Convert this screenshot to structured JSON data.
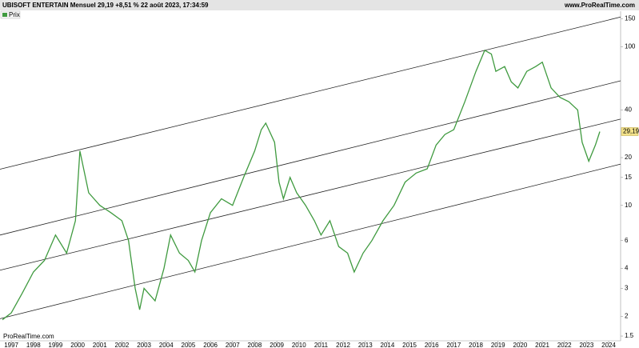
{
  "chart_data": {
    "type": "line",
    "title": "UBISOFT ENTERTAIN Mensuel 29,19 +8,51 % 22 août 2023, 17:34:59",
    "source": "www.ProRealTime.com",
    "watermark": "ProRealTime.com",
    "log_scale": true,
    "legend": "top-left",
    "series": [
      {
        "name": "Prix",
        "color": "#3f9a3f",
        "x": [
          1996.6,
          1997.0,
          1997.5,
          1998.0,
          1998.5,
          1999.0,
          1999.5,
          1999.9,
          2000.1,
          2000.5,
          2001.0,
          2001.5,
          2002.0,
          2002.3,
          2002.6,
          2002.8,
          2003.0,
          2003.5,
          2003.9,
          2004.2,
          2004.6,
          2005.0,
          2005.3,
          2005.6,
          2006.0,
          2006.5,
          2007.0,
          2007.5,
          2008.0,
          2008.3,
          2008.5,
          2008.9,
          2009.1,
          2009.3,
          2009.6,
          2009.9,
          2010.3,
          2010.7,
          2011.0,
          2011.4,
          2011.8,
          2012.2,
          2012.5,
          2012.9,
          2013.3,
          2013.8,
          2014.3,
          2014.8,
          2015.3,
          2015.8,
          2016.2,
          2016.6,
          2017.0,
          2017.5,
          2018.0,
          2018.4,
          2018.7,
          2018.9,
          2019.3,
          2019.6,
          2019.9,
          2020.3,
          2020.7,
          2021.0,
          2021.4,
          2021.8,
          2022.2,
          2022.6,
          2022.8,
          2023.1,
          2023.4,
          2023.6
        ],
        "values": [
          1.9,
          2.1,
          2.8,
          3.8,
          4.5,
          6.5,
          5.0,
          8,
          22,
          12,
          10,
          9,
          8,
          6,
          3,
          2.2,
          3,
          2.5,
          4,
          6.5,
          5,
          4.5,
          3.8,
          6,
          9,
          11,
          10,
          15,
          22,
          30,
          33,
          25,
          14,
          11,
          15,
          12,
          10,
          8,
          6.5,
          8,
          5.5,
          5,
          3.8,
          5,
          6,
          8,
          10,
          14,
          16,
          17,
          24,
          28,
          30,
          45,
          70,
          95,
          90,
          70,
          75,
          60,
          55,
          70,
          75,
          80,
          55,
          48,
          45,
          40,
          25,
          19,
          24,
          29.19
        ]
      }
    ],
    "last_price": {
      "value": 29.19,
      "label": "29,19"
    },
    "trendlines": [
      {
        "x": [
          1996.49,
          2024.54
        ],
        "values": [
          16.9,
          154
        ]
      },
      {
        "x": [
          1996.49,
          2024.54
        ],
        "values": [
          6.5,
          61
        ]
      },
      {
        "x": [
          1996.49,
          2024.54
        ],
        "values": [
          3.9,
          35
        ]
      },
      {
        "x": [
          1996.49,
          2024.54
        ],
        "values": [
          1.93,
          18.2
        ]
      }
    ],
    "xlim": [
      1996.49,
      2024.54
    ],
    "xticks": [
      1997,
      1998,
      1999,
      2000,
      2001,
      2002,
      2003,
      2004,
      2005,
      2006,
      2007,
      2008,
      2009,
      2010,
      2011,
      2012,
      2013,
      2014,
      2015,
      2016,
      2017,
      2018,
      2019,
      2020,
      2021,
      2022,
      2023,
      2024
    ],
    "ylim": [
      1.4,
      160
    ],
    "yticks": [
      1.5,
      2,
      3,
      4,
      6,
      10,
      15,
      20,
      40,
      100,
      150
    ]
  }
}
